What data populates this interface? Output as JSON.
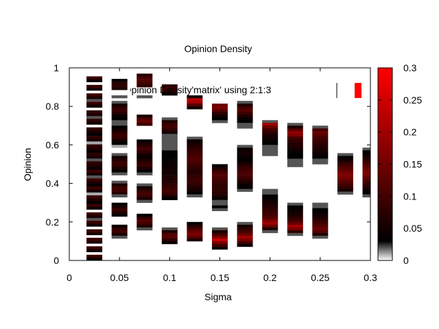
{
  "chart_data": {
    "type": "heatmap",
    "title": "Opinion Density",
    "xlabel": "Sigma",
    "ylabel": "Opinion",
    "xlim": [
      0,
      0.3
    ],
    "ylim": [
      0,
      1
    ],
    "x_ticks": [
      "0",
      "0.05",
      "0.1",
      "0.15",
      "0.2",
      "0.25",
      "0.3"
    ],
    "y_ticks": [
      "0",
      "0.2",
      "0.4",
      "0.6",
      "0.8",
      "1"
    ],
    "colorbar": {
      "range": [
        0,
        0.3
      ],
      "ticks": [
        "0",
        "0.05",
        "0.1",
        "0.15",
        "0.2",
        "0.25",
        "0.3"
      ],
      "palette": [
        "#ffffff",
        "#000000",
        "#ff0000"
      ]
    },
    "legend_fragment": "'Opinion Density'matrix' using 2:1:3",
    "columns": [
      {
        "x": 0.025,
        "density": [
          0.09,
          0.06,
          0.0,
          0.09,
          0.04,
          0.0,
          0.09,
          0.05,
          0.0,
          0.09,
          0.06,
          0.02,
          0.09,
          0.04,
          0.0,
          0.08,
          0.06,
          0.02,
          0.08,
          0.05,
          0.0,
          0.08,
          0.06,
          0.03,
          0.08,
          0.05,
          0.01,
          0.08,
          0.06,
          0.04,
          0.08,
          0.05,
          0.02,
          0.08,
          0.06,
          0.04,
          0.09,
          0.05,
          0.02,
          0.09,
          0.06,
          0.04,
          0.09,
          0.05,
          0.01,
          0.09,
          0.06,
          0.03,
          0.09,
          0.05,
          0.0,
          0.09,
          0.06,
          0.02,
          0.09,
          0.05,
          0.0,
          0.09,
          0.06,
          0.0,
          0.09,
          0.06,
          0.0,
          0.09,
          0.05,
          0.0,
          0.09,
          0.04
        ]
      },
      {
        "x": 0.05,
        "density": [
          0.09,
          0.08,
          0.0,
          0.0,
          0.03,
          0.07,
          0.08,
          0.06,
          0.0,
          0.0,
          0.02,
          0.0,
          0.02,
          0.05,
          0.08,
          0.09,
          0.07,
          0.04,
          0.03,
          0.02,
          0.02,
          0.03,
          0.05,
          0.07,
          0.09,
          0.08,
          0.05,
          0.03,
          0.01,
          0.0,
          0.0,
          0.02,
          0.05,
          0.07,
          0.09,
          0.08,
          0.06,
          0.04,
          0.02,
          0.0,
          0.0,
          0.02,
          0.06,
          0.09,
          0.1,
          0.07,
          0.02,
          0.0,
          0.0,
          0.03,
          0.06,
          0.09,
          0.07,
          0.03,
          0.0,
          0.0,
          0.0,
          0.04,
          0.08,
          0.1,
          0.06,
          0.02,
          0.0,
          0.0,
          0.0,
          0.0,
          0.0,
          0.0,
          0.0,
          0.0
        ]
      },
      {
        "x": 0.075,
        "density": [
          0.0,
          0.0,
          0.07,
          0.1,
          0.12,
          0.1,
          0.08,
          0.0,
          0.0,
          0.0,
          0.02,
          0.0,
          0.0,
          0.0,
          0.0,
          0.0,
          0.0,
          0.06,
          0.11,
          0.14,
          0.09,
          0.0,
          0.0,
          0.0,
          0.0,
          0.0,
          0.03,
          0.06,
          0.08,
          0.1,
          0.08,
          0.05,
          0.04,
          0.06,
          0.08,
          0.09,
          0.06,
          0.03,
          0.02,
          0.0,
          0.0,
          0.0,
          0.02,
          0.05,
          0.08,
          0.1,
          0.09,
          0.06,
          0.02,
          0.0,
          0.0,
          0.0,
          0.0,
          0.03,
          0.08,
          0.12,
          0.1,
          0.06,
          0.02,
          0.0,
          0.0,
          0.0,
          0.0,
          0.0,
          0.0,
          0.0,
          0.0,
          0.0,
          0.0,
          0.0
        ]
      },
      {
        "x": 0.1,
        "density": [
          0.0,
          0.0,
          0.0,
          0.0,
          0.0,
          0.0,
          0.07,
          0.1,
          0.08,
          0.04,
          0.0,
          0.0,
          0.0,
          0.0,
          0.0,
          0.0,
          0.0,
          0.0,
          0.02,
          0.06,
          0.09,
          0.1,
          0.08,
          0.05,
          0.02,
          0.02,
          0.02,
          0.02,
          0.02,
          0.02,
          0.03,
          0.03,
          0.03,
          0.04,
          0.04,
          0.04,
          0.05,
          0.05,
          0.05,
          0.06,
          0.06,
          0.07,
          0.08,
          0.09,
          0.1,
          0.09,
          0.06,
          0.03,
          0.0,
          0.0,
          0.0,
          0.0,
          0.0,
          0.0,
          0.0,
          0.0,
          0.0,
          0.0,
          0.02,
          0.06,
          0.12,
          0.12,
          0.08,
          0.04,
          0.0,
          0.0,
          0.0,
          0.0,
          0.0,
          0.0
        ]
      },
      {
        "x": 0.125,
        "density": [
          0.0,
          0.0,
          0.0,
          0.0,
          0.0,
          0.0,
          0.0,
          0.0,
          0.0,
          0.0,
          0.05,
          0.22,
          0.2,
          0.12,
          0.05,
          0.0,
          0.0,
          0.0,
          0.0,
          0.0,
          0.0,
          0.0,
          0.0,
          0.0,
          0.0,
          0.02,
          0.04,
          0.05,
          0.07,
          0.08,
          0.09,
          0.1,
          0.11,
          0.11,
          0.1,
          0.09,
          0.08,
          0.07,
          0.07,
          0.08,
          0.09,
          0.09,
          0.08,
          0.06,
          0.05,
          0.03,
          0.02,
          0.0,
          0.0,
          0.0,
          0.0,
          0.0,
          0.0,
          0.0,
          0.0,
          0.0,
          0.03,
          0.07,
          0.1,
          0.14,
          0.16,
          0.12,
          0.06,
          0.0,
          0.0,
          0.0,
          0.0,
          0.0,
          0.0,
          0.0
        ]
      },
      {
        "x": 0.15,
        "density": [
          0.0,
          0.0,
          0.0,
          0.0,
          0.0,
          0.0,
          0.0,
          0.0,
          0.0,
          0.0,
          0.0,
          0.0,
          0.0,
          0.14,
          0.16,
          0.12,
          0.08,
          0.05,
          0.03,
          0.02,
          0.0,
          0.0,
          0.0,
          0.0,
          0.0,
          0.0,
          0.0,
          0.0,
          0.0,
          0.0,
          0.0,
          0.0,
          0.0,
          0.0,
          0.0,
          0.03,
          0.06,
          0.09,
          0.11,
          0.11,
          0.1,
          0.09,
          0.08,
          0.08,
          0.08,
          0.07,
          0.06,
          0.04,
          0.02,
          0.02,
          0.03,
          0.02,
          0.0,
          0.0,
          0.0,
          0.0,
          0.0,
          0.0,
          0.02,
          0.06,
          0.1,
          0.16,
          0.24,
          0.16,
          0.1,
          0.05,
          0.0,
          0.0,
          0.0,
          0.0
        ]
      },
      {
        "x": 0.175,
        "density": [
          0.0,
          0.0,
          0.0,
          0.0,
          0.0,
          0.0,
          0.0,
          0.0,
          0.0,
          0.0,
          0.0,
          0.0,
          0.02,
          0.06,
          0.1,
          0.12,
          0.09,
          0.06,
          0.04,
          0.03,
          0.02,
          0.02,
          0.0,
          0.0,
          0.0,
          0.0,
          0.0,
          0.0,
          0.02,
          0.04,
          0.05,
          0.05,
          0.04,
          0.03,
          0.05,
          0.07,
          0.09,
          0.1,
          0.11,
          0.1,
          0.08,
          0.06,
          0.04,
          0.03,
          0.02,
          0.0,
          0.0,
          0.0,
          0.0,
          0.0,
          0.0,
          0.0,
          0.0,
          0.0,
          0.0,
          0.0,
          0.02,
          0.05,
          0.08,
          0.1,
          0.14,
          0.2,
          0.16,
          0.1,
          0.04,
          0.0,
          0.0,
          0.0,
          0.0,
          0.0
        ]
      },
      {
        "x": 0.2,
        "density": [
          0.0,
          0.0,
          0.0,
          0.0,
          0.0,
          0.0,
          0.0,
          0.0,
          0.0,
          0.0,
          0.0,
          0.0,
          0.0,
          0.0,
          0.0,
          0.0,
          0.0,
          0.0,
          0.0,
          0.02,
          0.2,
          0.14,
          0.1,
          0.08,
          0.06,
          0.05,
          0.04,
          0.03,
          0.02,
          0.02,
          0.02,
          0.02,
          0.0,
          0.0,
          0.0,
          0.0,
          0.0,
          0.0,
          0.0,
          0.0,
          0.0,
          0.0,
          0.0,
          0.0,
          0.02,
          0.02,
          0.03,
          0.04,
          0.05,
          0.06,
          0.07,
          0.08,
          0.09,
          0.1,
          0.12,
          0.16,
          0.2,
          0.14,
          0.06,
          0.02,
          0.0,
          0.0,
          0.0,
          0.0,
          0.0,
          0.0,
          0.0,
          0.0,
          0.0,
          0.0
        ]
      },
      {
        "x": 0.225,
        "density": [
          0.0,
          0.0,
          0.0,
          0.0,
          0.0,
          0.0,
          0.0,
          0.0,
          0.0,
          0.0,
          0.0,
          0.0,
          0.0,
          0.0,
          0.0,
          0.0,
          0.0,
          0.0,
          0.0,
          0.0,
          0.02,
          0.06,
          0.12,
          0.18,
          0.16,
          0.1,
          0.08,
          0.07,
          0.06,
          0.05,
          0.04,
          0.03,
          0.03,
          0.02,
          0.02,
          0.02,
          0.0,
          0.0,
          0.0,
          0.0,
          0.0,
          0.0,
          0.0,
          0.0,
          0.0,
          0.0,
          0.0,
          0.0,
          0.0,
          0.02,
          0.03,
          0.04,
          0.05,
          0.06,
          0.08,
          0.1,
          0.14,
          0.2,
          0.16,
          0.08,
          0.02,
          0.0,
          0.0,
          0.0,
          0.0,
          0.0,
          0.0,
          0.0,
          0.0,
          0.0
        ]
      },
      {
        "x": 0.25,
        "density": [
          0.0,
          0.0,
          0.0,
          0.0,
          0.0,
          0.0,
          0.0,
          0.0,
          0.0,
          0.0,
          0.0,
          0.0,
          0.0,
          0.0,
          0.0,
          0.0,
          0.0,
          0.0,
          0.0,
          0.0,
          0.0,
          0.02,
          0.1,
          0.14,
          0.12,
          0.1,
          0.09,
          0.08,
          0.07,
          0.06,
          0.05,
          0.04,
          0.03,
          0.02,
          0.02,
          0.0,
          0.0,
          0.0,
          0.0,
          0.0,
          0.0,
          0.0,
          0.0,
          0.0,
          0.0,
          0.0,
          0.0,
          0.0,
          0.0,
          0.02,
          0.02,
          0.03,
          0.04,
          0.05,
          0.06,
          0.08,
          0.1,
          0.12,
          0.14,
          0.12,
          0.06,
          0.02,
          0.0,
          0.0,
          0.0,
          0.0,
          0.0,
          0.0,
          0.0,
          0.0
        ]
      },
      {
        "x": 0.275,
        "density": [
          0.0,
          0.0,
          0.0,
          0.0,
          0.0,
          0.0,
          0.0,
          0.0,
          0.0,
          0.0,
          0.0,
          0.0,
          0.0,
          0.0,
          0.0,
          0.0,
          0.0,
          0.0,
          0.0,
          0.0,
          0.0,
          0.0,
          0.0,
          0.0,
          0.0,
          0.0,
          0.0,
          0.0,
          0.0,
          0.0,
          0.0,
          0.02,
          0.03,
          0.05,
          0.08,
          0.1,
          0.12,
          0.14,
          0.16,
          0.16,
          0.14,
          0.12,
          0.1,
          0.08,
          0.05,
          0.02,
          0.0,
          0.0,
          0.0,
          0.0,
          0.0,
          0.0,
          0.0,
          0.0,
          0.0,
          0.0,
          0.0,
          0.0,
          0.0,
          0.0,
          0.0,
          0.0,
          0.0,
          0.0,
          0.0,
          0.0,
          0.0,
          0.0,
          0.0,
          0.0
        ]
      },
      {
        "x": 0.3,
        "density": [
          0.0,
          0.0,
          0.0,
          0.0,
          0.0,
          0.0,
          0.0,
          0.0,
          0.0,
          0.0,
          0.0,
          0.0,
          0.0,
          0.0,
          0.0,
          0.0,
          0.0,
          0.0,
          0.0,
          0.0,
          0.0,
          0.0,
          0.0,
          0.0,
          0.0,
          0.0,
          0.0,
          0.0,
          0.0,
          0.02,
          0.03,
          0.04,
          0.06,
          0.08,
          0.1,
          0.12,
          0.14,
          0.16,
          0.16,
          0.14,
          0.12,
          0.1,
          0.08,
          0.06,
          0.04,
          0.03,
          0.02,
          0.0,
          0.0,
          0.0,
          0.0,
          0.0,
          0.0,
          0.0,
          0.0,
          0.0,
          0.0,
          0.0,
          0.0,
          0.0,
          0.0,
          0.0,
          0.0,
          0.0,
          0.0,
          0.0,
          0.0,
          0.0,
          0.0,
          0.0
        ]
      }
    ]
  }
}
